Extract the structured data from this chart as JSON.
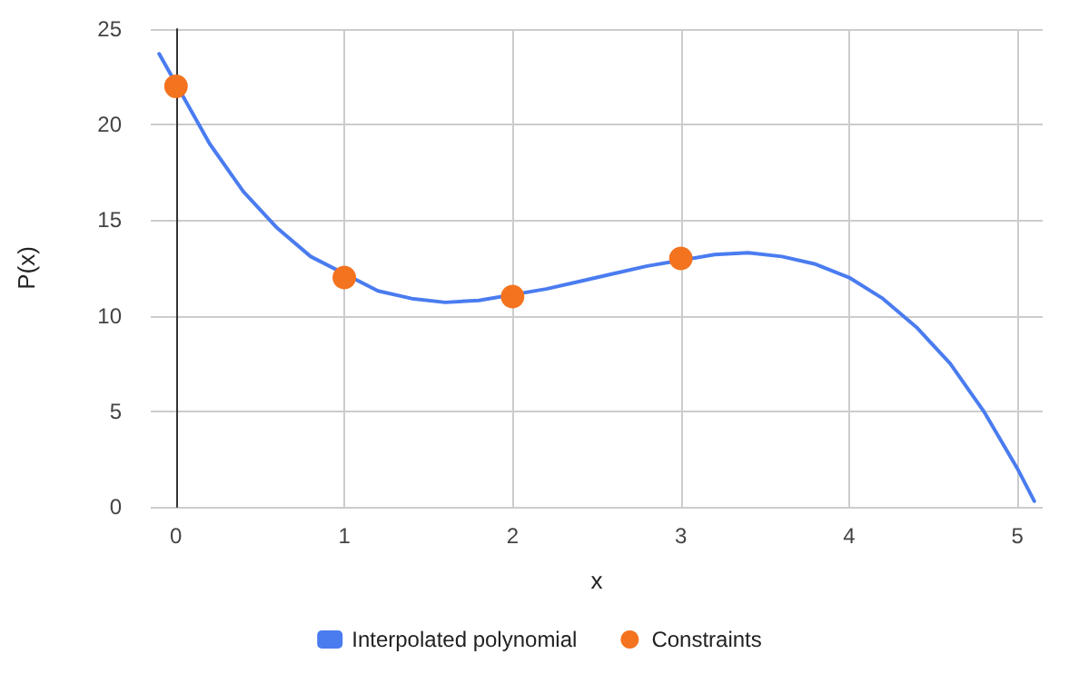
{
  "chart_data": {
    "type": "line",
    "xlabel": "x",
    "ylabel": "P(x)",
    "xlim": [
      -0.15,
      5.15
    ],
    "xticks": [
      0,
      1,
      2,
      3,
      4,
      5
    ],
    "ylim": [
      0,
      25
    ],
    "yticks": [
      0,
      5,
      10,
      15,
      20,
      25
    ],
    "grid": true,
    "legend": "bottom",
    "series": [
      {
        "name": "Interpolated polynomial",
        "type": "line",
        "marker": "none",
        "color": "#4a7cf0",
        "x": [
          -0.1,
          0.2,
          0.4,
          0.6,
          0.8,
          1.2,
          1.4,
          1.6,
          1.8,
          2.2,
          2.4,
          2.6,
          2.8,
          3.2,
          3.4,
          3.6,
          3.8,
          4,
          4.2,
          4.4,
          4.6,
          4.8,
          5,
          5.1
        ],
        "values": [
          23.7,
          19.0,
          16.5,
          14.6,
          13.1,
          11.3,
          10.9,
          10.7,
          10.8,
          11.4,
          11.8,
          12.2,
          12.6,
          13.2,
          13.3,
          13.1,
          12.7,
          12,
          10.9,
          9.4,
          7.5,
          5.0,
          2,
          0.3
        ]
      },
      {
        "name": "Constraints",
        "type": "scatter",
        "marker": "circle",
        "color": "#f4731f",
        "x": [
          0,
          1,
          2,
          3
        ],
        "values": [
          22,
          12,
          11,
          13
        ]
      }
    ]
  }
}
